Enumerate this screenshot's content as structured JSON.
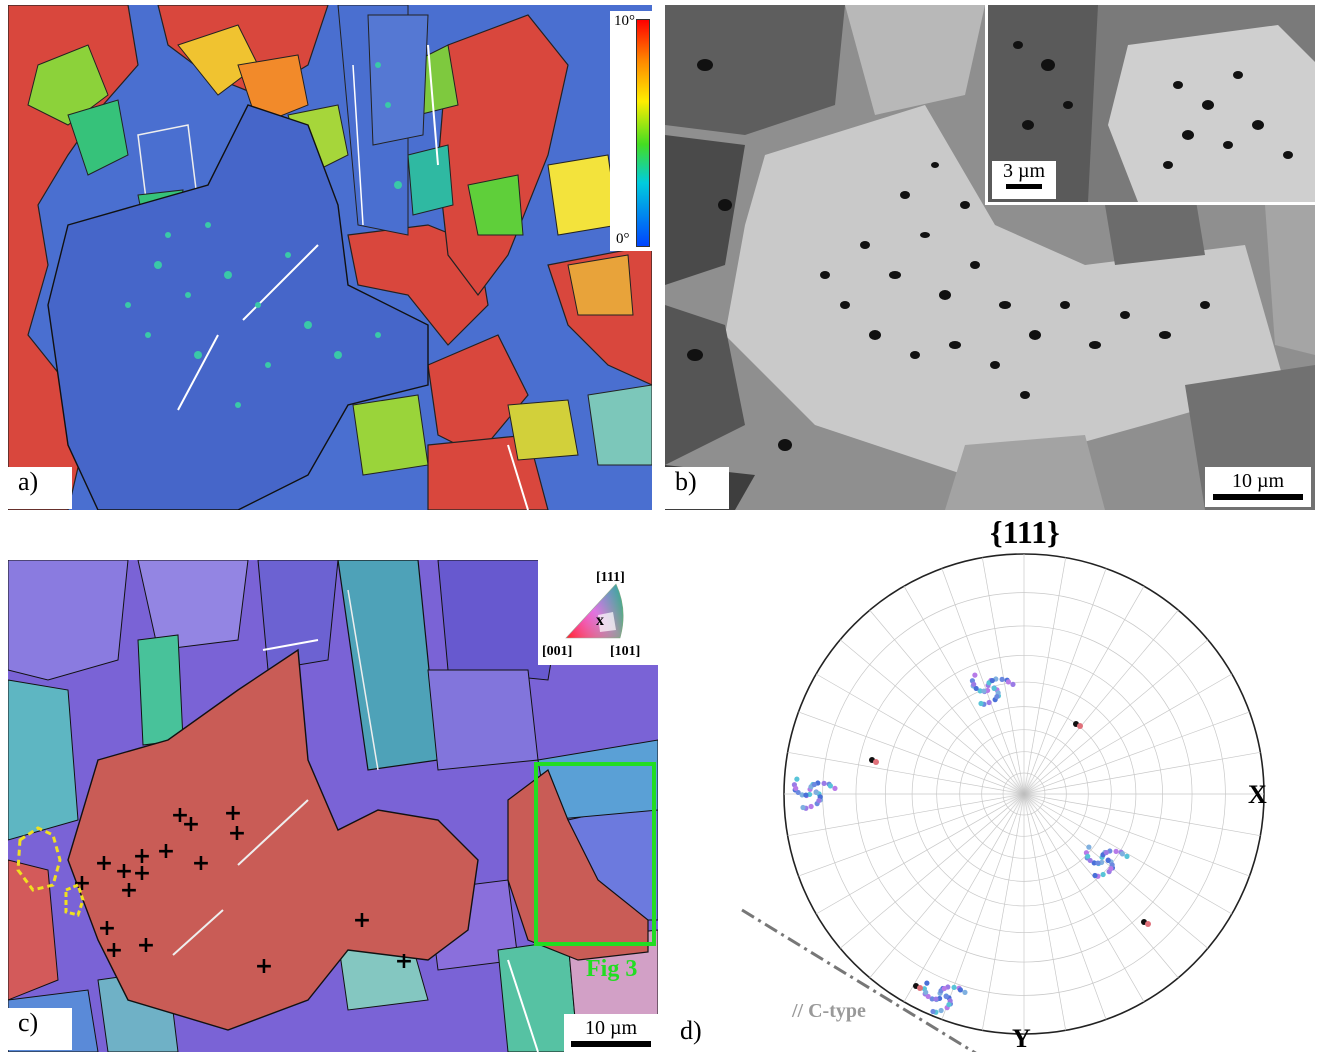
{
  "panels": {
    "a": {
      "label": "a)",
      "colorbar": {
        "max": "10°",
        "min": "0°"
      }
    },
    "b": {
      "label": "b)",
      "scale_main": "10 µm",
      "scale_inset": "3 µm"
    },
    "c": {
      "label": "c)",
      "scale": "10 µm",
      "annotation": "Fig 3",
      "ipf_key": {
        "top": "[111]",
        "left": "[001]",
        "right": "[101]",
        "center": "x"
      }
    },
    "d": {
      "label": "d)",
      "title": "{111}",
      "axis_x": "X",
      "axis_y": "Y",
      "reference": "// C-type"
    }
  },
  "colors": {
    "grain_red": "#d9473d",
    "grain_blue": "#4a6fd0",
    "highlight_green": "#22dd22",
    "marker_yellow": "#f0e020",
    "boundary": "#000000",
    "twin": "#ffffff"
  }
}
